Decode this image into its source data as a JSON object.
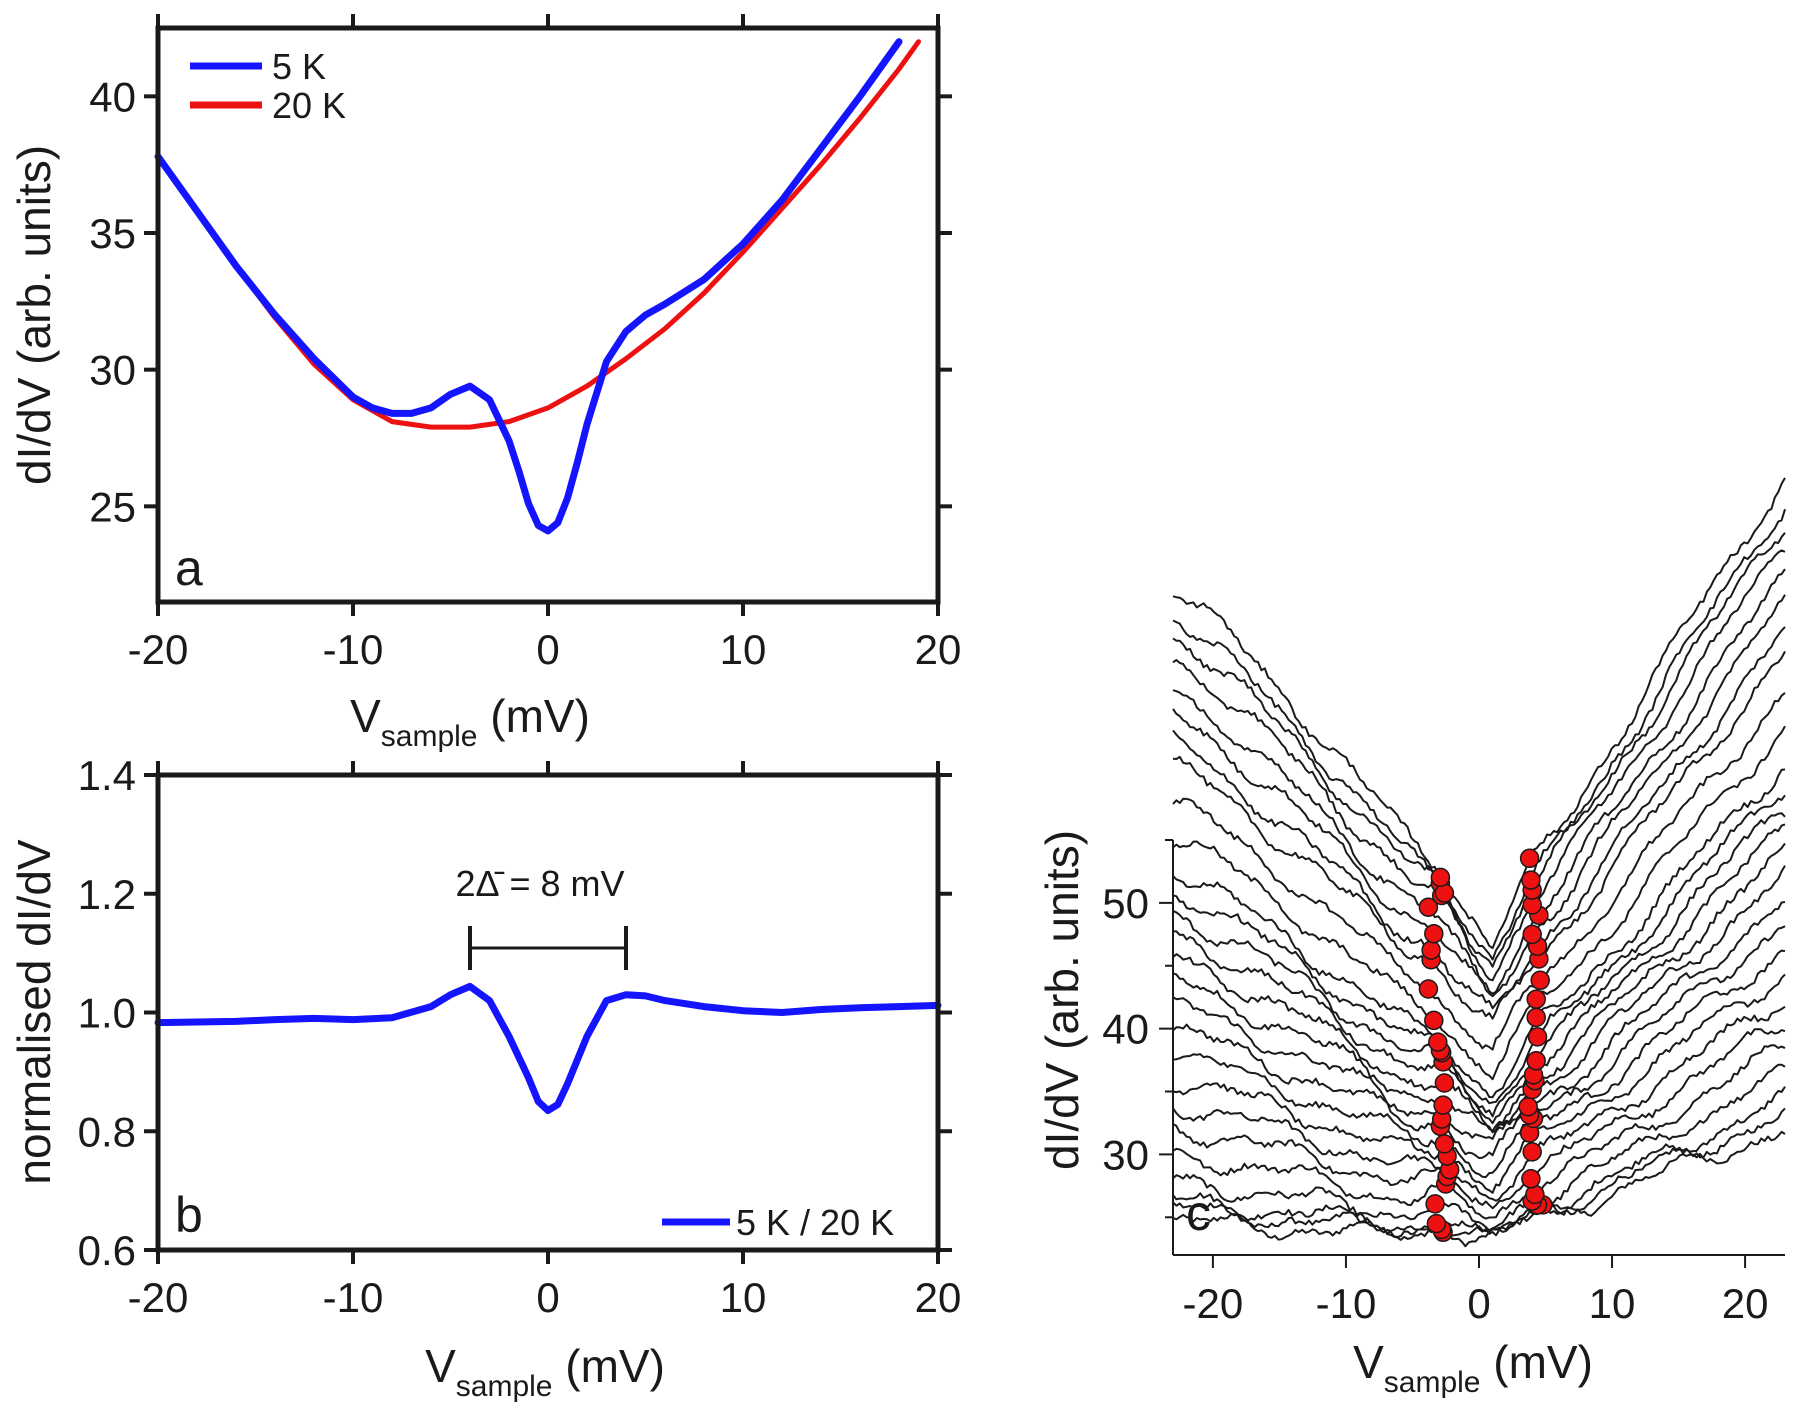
{
  "chart_data": [
    {
      "panel": "a",
      "type": "line",
      "xlabel": "V",
      "xlabel_sub": "sample",
      "xlabel_unit": " (mV)",
      "ylabel": "dI/dV (arb. units)",
      "xlim": [
        -20,
        20
      ],
      "ylim": [
        21.5,
        42.5
      ],
      "xticks": [
        -20,
        -10,
        0,
        10,
        20
      ],
      "yticks": [
        25,
        30,
        35,
        40
      ],
      "legend_position": "top-left",
      "panel_label": "a",
      "series": [
        {
          "name": "5 K",
          "color": "#1414ff",
          "x": [
            -20,
            -18,
            -16,
            -14,
            -12,
            -10,
            -9,
            -8,
            -7,
            -6,
            -5,
            -4,
            -3,
            -2,
            -1.5,
            -1,
            -0.5,
            0,
            0.5,
            1,
            1.5,
            2,
            3,
            4,
            5,
            6,
            8,
            10,
            12,
            14,
            16,
            18
          ],
          "y": [
            37.8,
            35.8,
            33.8,
            32.0,
            30.4,
            29.0,
            28.6,
            28.4,
            28.4,
            28.6,
            29.1,
            29.4,
            28.9,
            27.4,
            26.3,
            25.1,
            24.3,
            24.1,
            24.4,
            25.3,
            26.6,
            28.0,
            30.3,
            31.4,
            32.0,
            32.4,
            33.3,
            34.6,
            36.2,
            38.1,
            40.0,
            42.0
          ]
        },
        {
          "name": "20 K",
          "color": "#ee1111",
          "x": [
            -20,
            -18,
            -16,
            -14,
            -12,
            -10,
            -8,
            -6,
            -4,
            -2,
            0,
            2,
            4,
            6,
            8,
            10,
            12,
            14,
            16,
            18,
            19
          ],
          "y": [
            37.8,
            35.8,
            33.8,
            31.9,
            30.2,
            28.9,
            28.1,
            27.9,
            27.9,
            28.1,
            28.6,
            29.4,
            30.4,
            31.5,
            32.8,
            34.3,
            35.9,
            37.5,
            39.2,
            41.0,
            42.0
          ]
        }
      ]
    },
    {
      "panel": "b",
      "type": "line",
      "xlabel": "V",
      "xlabel_sub": "sample",
      "xlabel_unit": " (mV)",
      "ylabel": "normalised dI/dV",
      "xlim": [
        -20,
        20
      ],
      "ylim": [
        0.6,
        1.4
      ],
      "xticks": [
        -20,
        -10,
        0,
        10,
        20
      ],
      "yticks": [
        0.6,
        0.8,
        1.0,
        1.2,
        1.4
      ],
      "yticklabels": [
        "0.6",
        "0.8",
        "1.0",
        "1.2",
        "1.4"
      ],
      "legend_position": "bottom-right",
      "panel_label": "b",
      "annotation": {
        "text": "2Δ̄ = 8 mV",
        "from": -4,
        "to": 4
      },
      "series": [
        {
          "name": "5 K / 20 K",
          "color": "#1414ff",
          "x": [
            -20,
            -18,
            -16,
            -14,
            -12,
            -10,
            -8,
            -6,
            -5,
            -4,
            -3,
            -2,
            -1,
            -0.5,
            0,
            0.5,
            1,
            2,
            3,
            4,
            5,
            6,
            8,
            10,
            12,
            14,
            16,
            18,
            20
          ],
          "y": [
            0.983,
            0.984,
            0.985,
            0.988,
            0.99,
            0.988,
            0.991,
            1.01,
            1.03,
            1.044,
            1.02,
            0.96,
            0.89,
            0.85,
            0.835,
            0.845,
            0.88,
            0.96,
            1.02,
            1.03,
            1.028,
            1.02,
            1.01,
            1.003,
            1.0,
            1.005,
            1.008,
            1.01,
            1.012
          ]
        }
      ]
    },
    {
      "panel": "c",
      "type": "line",
      "xlabel": "V",
      "xlabel_sub": "sample",
      "xlabel_unit": " (mV)",
      "ylabel": "dI/dV (arb. units)",
      "xlim": [
        -23,
        23
      ],
      "ylim": [
        22,
        55
      ],
      "xticks": [
        -20,
        -10,
        0,
        10,
        20
      ],
      "yticks": [
        30,
        40,
        50
      ],
      "panel_label": "c",
      "marker_color": "#ee1111",
      "description": "stack of 27 offset spectra (black) with coherence-peak markers",
      "series": [
        {
          "left": 27.6,
          "right": 44.5,
          "offset": 0.0,
          "peaks": [
            -2.7,
            4.8
          ]
        },
        {
          "left": 29.0,
          "right": 46.2,
          "offset": 0.2,
          "peaks": [
            -2.8,
            4.3
          ]
        },
        {
          "left": 30.0,
          "right": 47.8,
          "offset": 0.4,
          "peaks": [
            -3.2,
            4.4
          ]
        },
        {
          "left": 31.0,
          "right": 49.5,
          "offset": 2.5,
          "peaks": [
            -3.3,
            4.0
          ]
        },
        {
          "left": 32.8,
          "right": 51.0,
          "offset": 5.0,
          "peaks": [
            -2.5,
            4.2
          ]
        },
        {
          "left": 34.5,
          "right": 52.6,
          "offset": 7.5,
          "peaks": [
            -2.4,
            3.9
          ]
        },
        {
          "left": 36.0,
          "right": 54.2,
          "offset": 9.8,
          "peaks": [
            -2.2,
            4.0
          ]
        },
        {
          "left": 37.5,
          "right": 55.8,
          "offset": 12.3,
          "peaks": [
            -2.4,
            3.8
          ]
        },
        {
          "left": 39.0,
          "right": 57.3,
          "offset": 14.8,
          "peaks": [
            -2.6,
            4.1
          ]
        },
        {
          "left": 40.5,
          "right": 58.9,
          "offset": 17.2,
          "peaks": [
            -2.9,
            3.8
          ]
        },
        {
          "left": 42.2,
          "right": 60.4,
          "offset": 19.3,
          "peaks": [
            -2.8,
            3.7
          ]
        },
        {
          "left": 43.8,
          "right": 62.0,
          "offset": 21.6,
          "peaks": [
            -2.7,
            4.0
          ]
        },
        {
          "left": 45.5,
          "right": 63.6,
          "offset": 23.5,
          "peaks": [
            -2.6,
            4.2
          ]
        },
        {
          "left": 47.0,
          "right": 65.2,
          "offset": 25.6,
          "peaks": [
            -2.7,
            4.1
          ]
        },
        {
          "left": 48.5,
          "right": 66.8,
          "offset": 27.5,
          "peaks": [
            -2.8,
            4.3
          ]
        },
        {
          "left": 50.0,
          "right": 68.4,
          "offset": 29.4,
          "peaks": [
            -2.9,
            4.4
          ]
        },
        {
          "left": 51.5,
          "right": 70.0,
          "offset": 31.2,
          "peaks": [
            -3.1,
            4.3
          ]
        },
        {
          "left": 53.0,
          "right": 71.8,
          "offset": 35.5,
          "peaks": [
            -3.4,
            4.3
          ]
        },
        {
          "left": 54.5,
          "right": 73.3,
          "offset": 40.0,
          "peaks": [
            -3.8,
            4.6
          ]
        },
        {
          "left": 56.0,
          "right": 74.9,
          "offset": 45.0,
          "peaks": [
            -3.6,
            4.5
          ]
        },
        {
          "left": 57.5,
          "right": 76.5,
          "offset": 47.0,
          "peaks": [
            -3.6,
            4.4
          ]
        },
        {
          "left": 59.0,
          "right": 78.0,
          "offset": 50.5,
          "peaks": [
            -3.4,
            4.0
          ]
        },
        {
          "left": 60.5,
          "right": 79.6,
          "offset": 53.0,
          "peaks": [
            -3.8,
            4.5
          ]
        },
        {
          "left": 62.2,
          "right": 81.2,
          "offset": 56.5,
          "peaks": [
            -2.8,
            4.0
          ]
        },
        {
          "left": 63.8,
          "right": 82.8,
          "offset": 58.8,
          "peaks": [
            -2.9,
            4.0
          ]
        },
        {
          "left": 65.3,
          "right": 84.4,
          "offset": 60.0,
          "peaks": [
            -2.6,
            3.9
          ]
        },
        {
          "left": 67.0,
          "right": 86.0,
          "offset": 62.5,
          "peaks": [
            -2.9,
            3.8
          ]
        }
      ]
    }
  ]
}
